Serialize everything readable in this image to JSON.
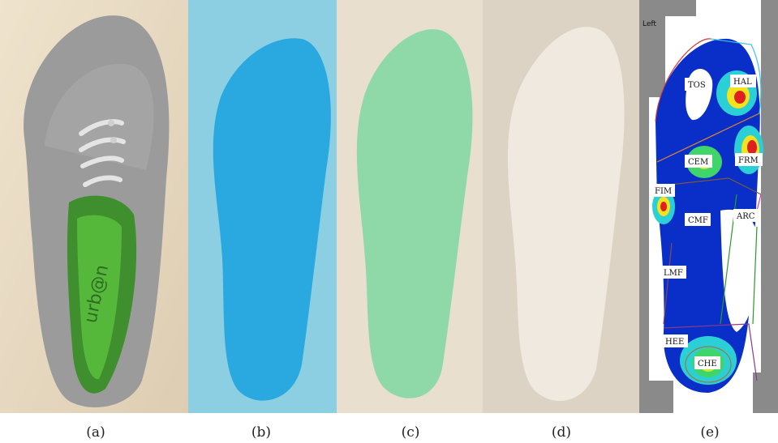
{
  "panels": [
    {
      "id": "a",
      "caption": "(a)",
      "subject": "shoe with insole",
      "insole_text": "urb@n"
    },
    {
      "id": "b",
      "caption": "(b)",
      "subject": "blue insole",
      "color": "#2aa9e0"
    },
    {
      "id": "c",
      "caption": "(c)",
      "subject": "green insole",
      "color": "#8fd9a8"
    },
    {
      "id": "d",
      "caption": "(d)",
      "subject": "white insole",
      "color": "#efe9df"
    },
    {
      "id": "e",
      "caption": "(e)",
      "subject": "plantar pressure map",
      "side_label": "Left",
      "regions": [
        "TOS",
        "HAL",
        "CEM",
        "FRM",
        "FIM",
        "CMF",
        "ARC",
        "LMF",
        "HEE",
        "CHE"
      ]
    }
  ]
}
